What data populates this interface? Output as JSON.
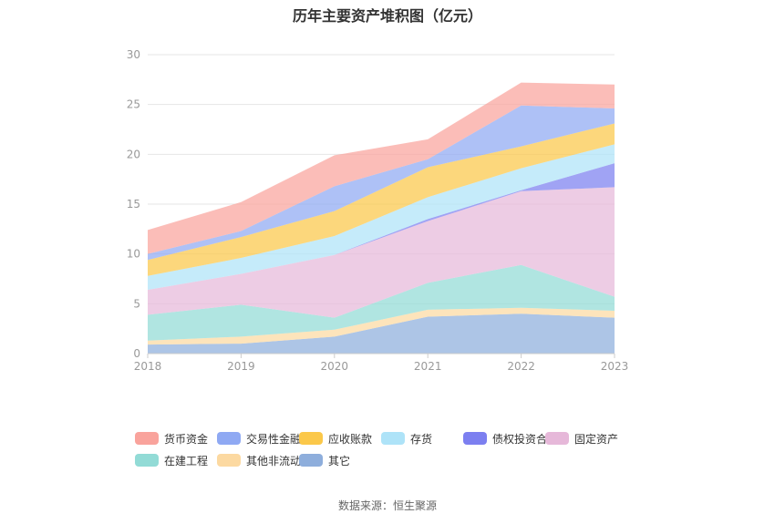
{
  "title": "历年主要资产堆积图（亿元）",
  "source": "数据来源：恒生聚源",
  "chart_data": {
    "type": "area",
    "stacked": true,
    "title": "历年主要资产堆积图（亿元）",
    "categories": [
      "2018",
      "2019",
      "2020",
      "2021",
      "2022",
      "2023"
    ],
    "ylim": [
      0,
      30
    ],
    "yticks": [
      0,
      5,
      10,
      15,
      20,
      25,
      30
    ],
    "grid": true,
    "legend_position": "bottom",
    "series": [
      {
        "name": "其它",
        "color": "#8eaedc",
        "values": [
          0.9,
          1.0,
          1.7,
          3.7,
          4.0,
          3.6
        ]
      },
      {
        "name": "其他非流动资产",
        "color": "#fcd9a1",
        "values": [
          0.4,
          0.7,
          0.7,
          0.7,
          0.6,
          0.7
        ]
      },
      {
        "name": "在建工程",
        "color": "#92dbd6",
        "values": [
          2.6,
          3.2,
          1.2,
          2.7,
          4.3,
          1.4
        ]
      },
      {
        "name": "固定资产",
        "color": "#e6b8d9",
        "values": [
          2.5,
          3.1,
          6.3,
          6.2,
          7.4,
          11.0
        ]
      },
      {
        "name": "债权投资合计",
        "color": "#7c7ff0",
        "values": [
          0,
          0,
          0,
          0.2,
          0.1,
          2.4
        ]
      },
      {
        "name": "存货",
        "color": "#aee3f8",
        "values": [
          1.4,
          1.6,
          1.9,
          2.2,
          2.2,
          1.9
        ]
      },
      {
        "name": "应收账款",
        "color": "#fbc84a",
        "values": [
          1.6,
          2.1,
          2.5,
          3.0,
          2.2,
          2.1
        ]
      },
      {
        "name": "交易性金融资产",
        "color": "#8fa9f3",
        "values": [
          0.6,
          0.6,
          2.5,
          0.8,
          4.1,
          1.5
        ]
      },
      {
        "name": "货币资金",
        "color": "#f9a39c",
        "values": [
          2.4,
          2.9,
          3.1,
          2.0,
          2.3,
          2.4
        ]
      }
    ]
  }
}
